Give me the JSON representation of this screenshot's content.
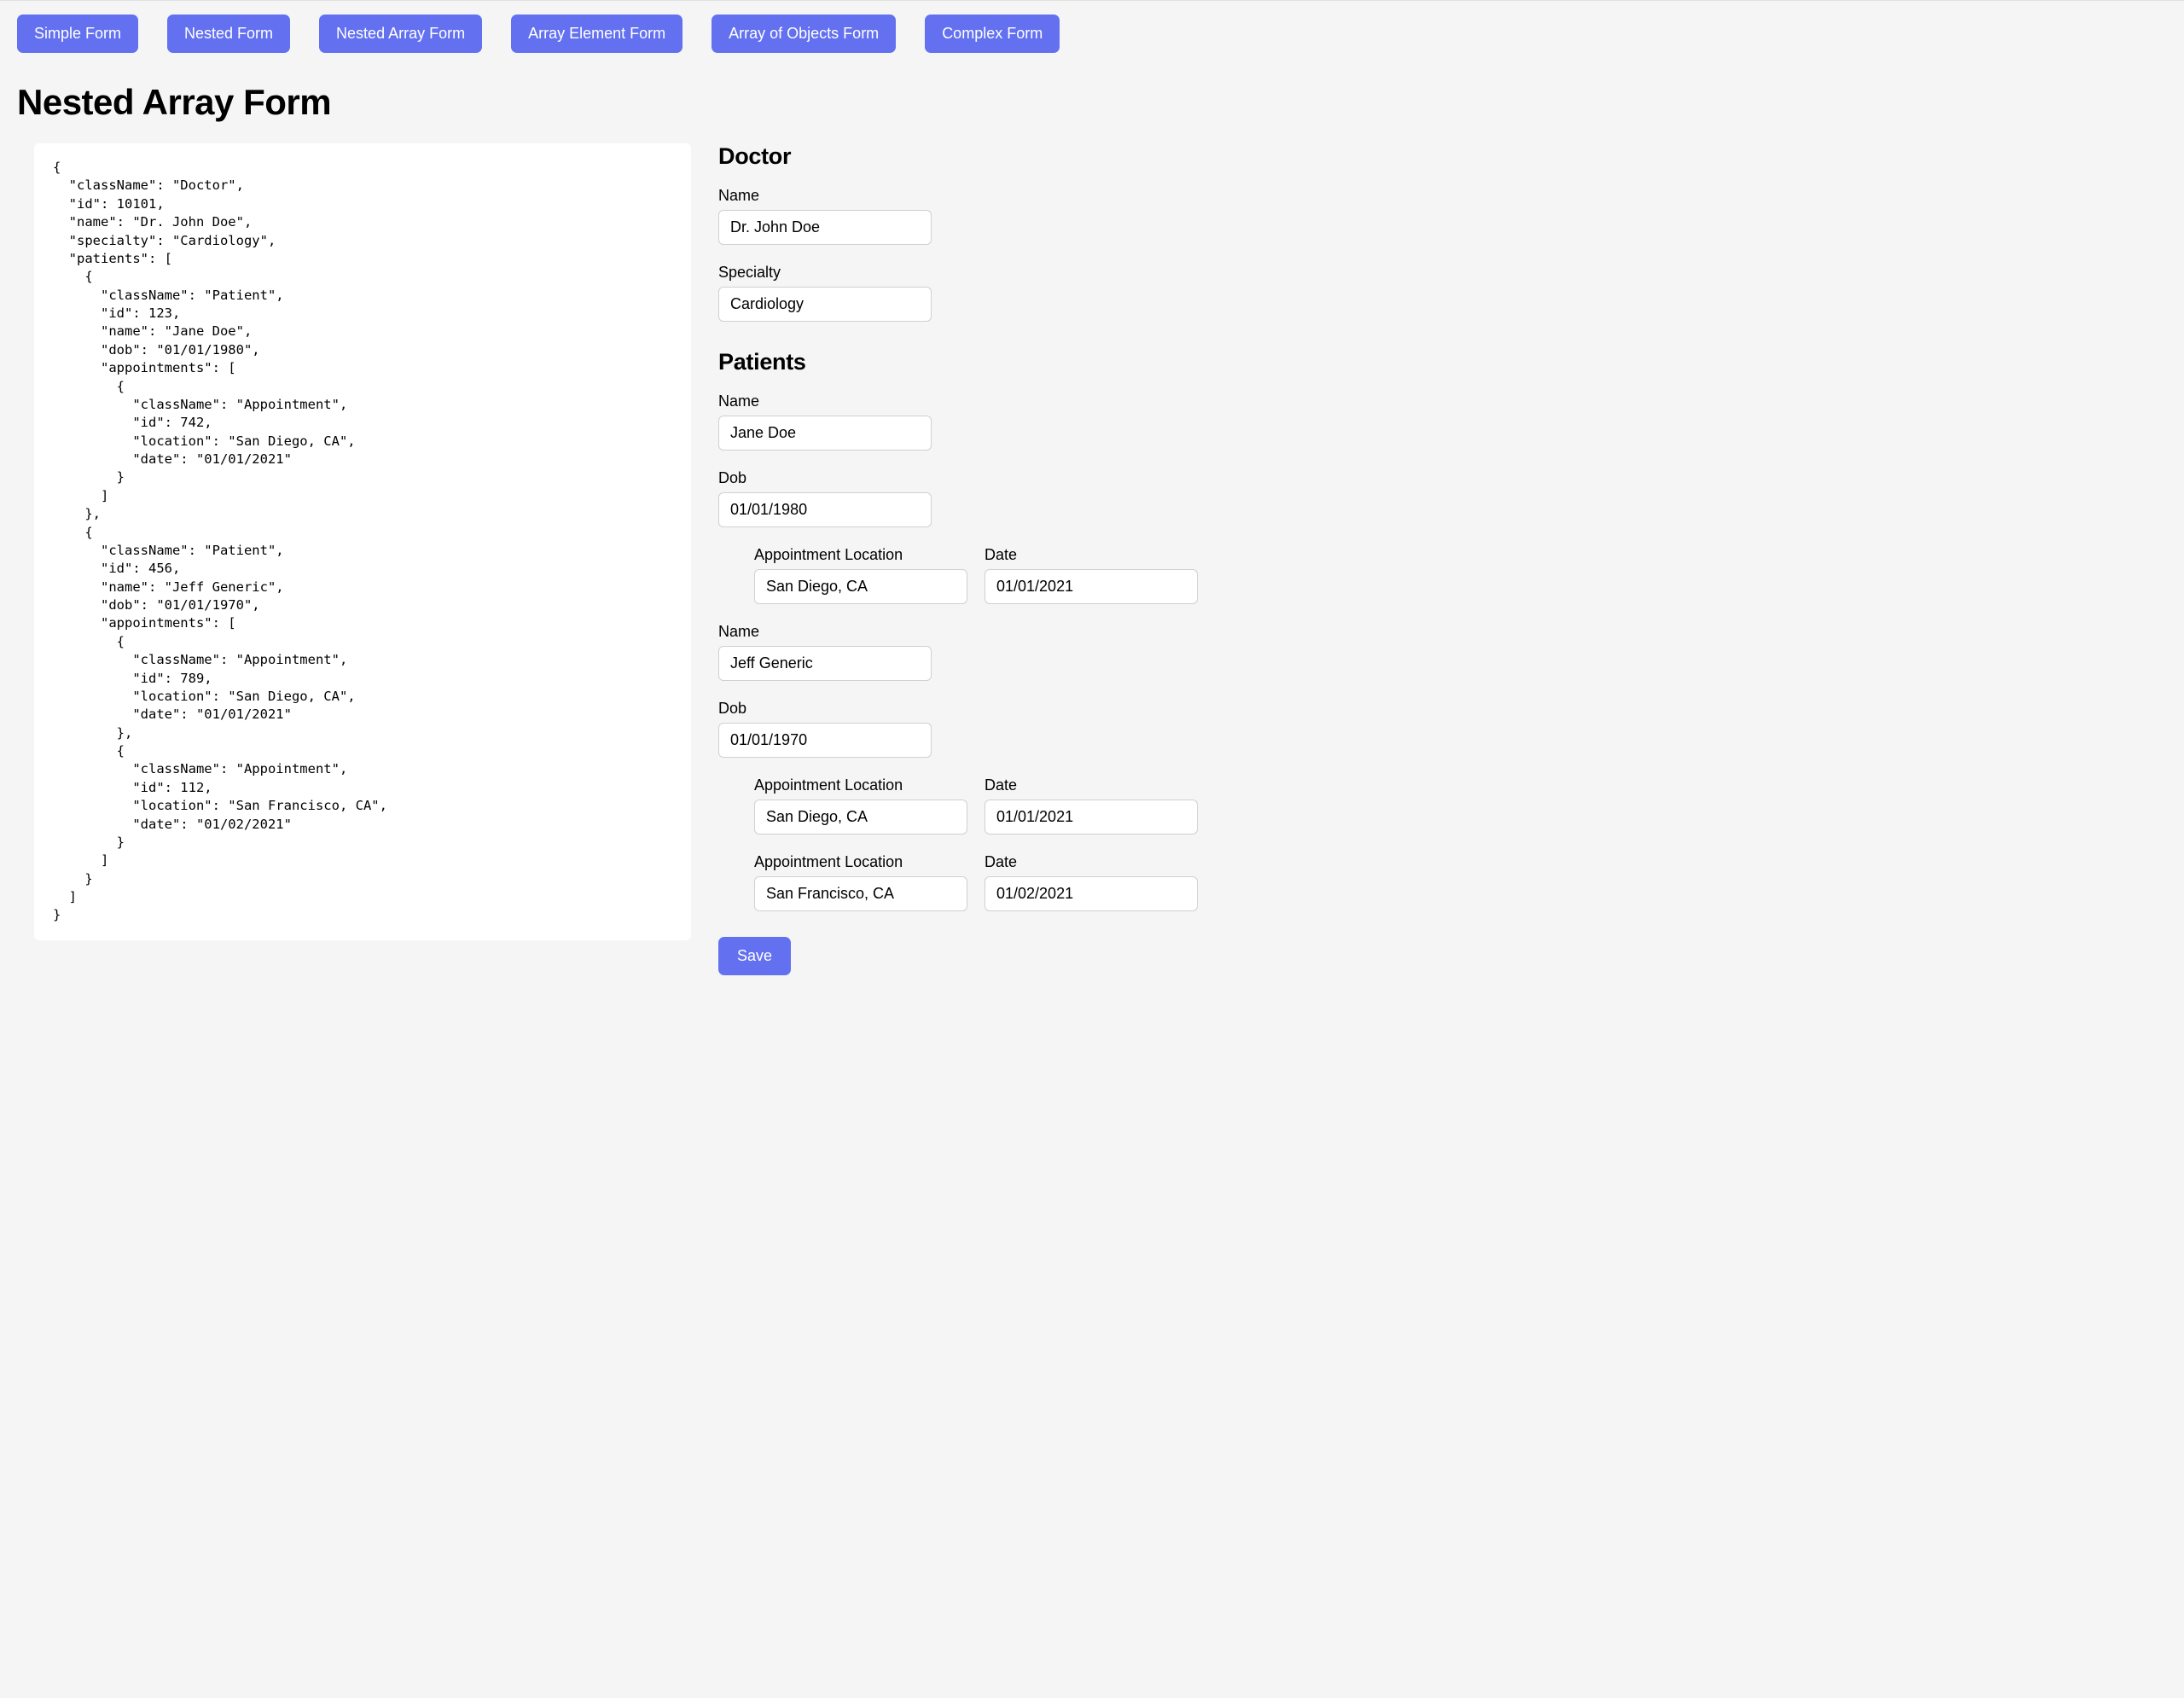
{
  "nav": {
    "tabs": [
      "Simple Form",
      "Nested Form",
      "Nested Array Form",
      "Array Element Form",
      "Array of Objects Form",
      "Complex Form"
    ]
  },
  "page": {
    "title": "Nested Array Form"
  },
  "colors": {
    "accent": "#6371f0",
    "background": "#f5f5f5",
    "panel": "#ffffff",
    "border": "#d0d0d0",
    "text": "#000000"
  },
  "codeJson": "{\n  \"className\": \"Doctor\",\n  \"id\": 10101,\n  \"name\": \"Dr. John Doe\",\n  \"specialty\": \"Cardiology\",\n  \"patients\": [\n    {\n      \"className\": \"Patient\",\n      \"id\": 123,\n      \"name\": \"Jane Doe\",\n      \"dob\": \"01/01/1980\",\n      \"appointments\": [\n        {\n          \"className\": \"Appointment\",\n          \"id\": 742,\n          \"location\": \"San Diego, CA\",\n          \"date\": \"01/01/2021\"\n        }\n      ]\n    },\n    {\n      \"className\": \"Patient\",\n      \"id\": 456,\n      \"name\": \"Jeff Generic\",\n      \"dob\": \"01/01/1970\",\n      \"appointments\": [\n        {\n          \"className\": \"Appointment\",\n          \"id\": 789,\n          \"location\": \"San Diego, CA\",\n          \"date\": \"01/01/2021\"\n        },\n        {\n          \"className\": \"Appointment\",\n          \"id\": 112,\n          \"location\": \"San Francisco, CA\",\n          \"date\": \"01/02/2021\"\n        }\n      ]\n    }\n  ]\n}",
  "form": {
    "doctor": {
      "heading": "Doctor",
      "nameLabel": "Name",
      "nameValue": "Dr. John Doe",
      "specialtyLabel": "Specialty",
      "specialtyValue": "Cardiology"
    },
    "patients": {
      "heading": "Patients",
      "nameLabel": "Name",
      "dobLabel": "Dob",
      "appointmentLocationLabel": "Appointment Location",
      "dateLabel": "Date",
      "list": [
        {
          "name": "Jane Doe",
          "dob": "01/01/1980",
          "appointments": [
            {
              "location": "San Diego, CA",
              "date": "01/01/2021"
            }
          ]
        },
        {
          "name": "Jeff Generic",
          "dob": "01/01/1970",
          "appointments": [
            {
              "location": "San Diego, CA",
              "date": "01/01/2021"
            },
            {
              "location": "San Francisco, CA",
              "date": "01/02/2021"
            }
          ]
        }
      ]
    },
    "saveLabel": "Save"
  }
}
